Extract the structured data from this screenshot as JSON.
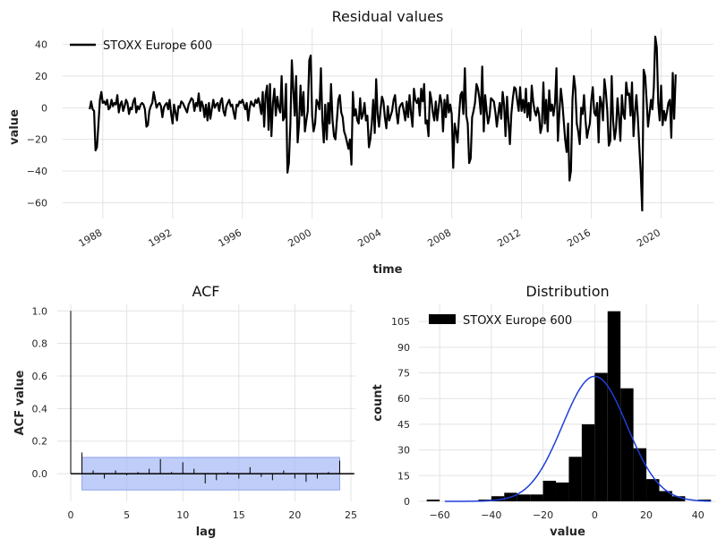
{
  "chart_data": [
    {
      "type": "line",
      "title": "Residual values",
      "xlabel": "time",
      "ylabel": "value",
      "xlim": [
        1985.7,
        2023.0
      ],
      "ylim": [
        -70,
        50
      ],
      "x_ticks": [
        1988,
        1992,
        1996,
        2000,
        2004,
        2008,
        2012,
        2016,
        2020
      ],
      "y_ticks": [
        -60,
        -40,
        -20,
        0,
        20,
        40
      ],
      "legend": "top-left",
      "series": [
        {
          "name": "STOXX Europe 600",
          "color": "#000000",
          "start": 1987.25,
          "step": 0.0833333,
          "values": [
            -1,
            4,
            -1,
            -2,
            -27,
            -25,
            -10,
            5,
            10,
            3,
            4,
            2,
            5,
            -1,
            0,
            5,
            1,
            3,
            2,
            8,
            -3,
            2,
            4,
            -2,
            1,
            5,
            3,
            -4,
            0,
            -1,
            4,
            6,
            -3,
            1,
            -1,
            2,
            3,
            2,
            -1,
            -12,
            -11,
            -2,
            1,
            3,
            10,
            5,
            0,
            2,
            3,
            1,
            -6,
            0,
            2,
            3,
            -1,
            5,
            -4,
            -10,
            2,
            -3,
            -8,
            1,
            0,
            4,
            3,
            1,
            -1,
            -3,
            2,
            4,
            6,
            5,
            -2,
            3,
            1,
            9,
            -2,
            4,
            1,
            -6,
            2,
            -8,
            3,
            -7,
            -1,
            5,
            0,
            2,
            3,
            -2,
            4,
            6,
            -2,
            -5,
            1,
            3,
            5,
            1,
            2,
            -3,
            -7,
            2,
            1,
            4,
            3,
            5,
            2,
            -1,
            3,
            -8,
            0,
            4,
            2,
            1,
            5,
            3,
            6,
            2,
            -4,
            10,
            -12,
            8,
            14,
            -14,
            15,
            -18,
            3,
            12,
            -5,
            7,
            0,
            -3,
            20,
            -8,
            -6,
            15,
            -41,
            -35,
            -10,
            30,
            12,
            -5,
            20,
            -22,
            -10,
            14,
            -5,
            10,
            -15,
            -8,
            -2,
            30,
            33,
            -5,
            -15,
            -10,
            5,
            3,
            -1,
            25,
            -8,
            -22,
            2,
            -20,
            3,
            -10,
            15,
            -8,
            -18,
            -20,
            -8,
            5,
            8,
            -3,
            -6,
            -15,
            -18,
            -22,
            -26,
            -20,
            -36,
            10,
            -5,
            -1,
            -8,
            -10,
            6,
            -7,
            -4,
            3,
            -8,
            -5,
            -25,
            -20,
            -10,
            5,
            -16,
            18,
            -4,
            -12,
            -1,
            7,
            4,
            -6,
            -13,
            1,
            -8,
            -5,
            -2,
            5,
            8,
            -3,
            -10,
            0,
            2,
            3,
            -2,
            -8,
            4,
            -6,
            8,
            -4,
            -12,
            12,
            5,
            3,
            6,
            -5,
            12,
            4,
            15,
            -10,
            -8,
            -18,
            10,
            5,
            -3,
            -8,
            4,
            -8,
            0,
            8,
            3,
            -15,
            5,
            -6,
            8,
            -3,
            2,
            -4,
            -38,
            -10,
            -15,
            -22,
            -5,
            8,
            10,
            -4,
            25,
            -5,
            -10,
            -35,
            -32,
            -6,
            -2,
            3,
            15,
            12,
            6,
            -4,
            26,
            -15,
            8,
            -2,
            -10,
            -5,
            6,
            5,
            4,
            -3,
            -12,
            -4,
            3,
            -7,
            10,
            2,
            -18,
            7,
            -9,
            -23,
            -4,
            6,
            13,
            12,
            5,
            -2,
            13,
            -2,
            5,
            -3,
            12,
            -6,
            3,
            -8,
            14,
            4,
            -2,
            -5,
            0,
            -4,
            -16,
            -12,
            16,
            -10,
            5,
            -15,
            11,
            -2,
            2,
            -5,
            3,
            25,
            -21,
            -4,
            12,
            4,
            -8,
            -20,
            -28,
            -10,
            -46,
            -40,
            5,
            20,
            12,
            -10,
            -15,
            -23,
            0,
            -4,
            8,
            -8,
            -19,
            -14,
            -10,
            5,
            13,
            -3,
            -5,
            3,
            -22,
            7,
            3,
            -8,
            18,
            10,
            -2,
            -24,
            -21,
            20,
            -8,
            -20,
            -13,
            6,
            -5,
            -21,
            8,
            -4,
            -7,
            16,
            8,
            9,
            -5,
            16,
            -18,
            -3,
            8,
            -6,
            -25,
            -42,
            -65,
            24,
            20,
            5,
            -12,
            -4,
            5,
            -1,
            13,
            45,
            38,
            3,
            -8,
            14,
            -11,
            -2,
            -8,
            -3,
            3,
            5,
            -19,
            22,
            -7,
            21
          ]
        }
      ]
    },
    {
      "type": "bar",
      "title": "ACF",
      "xlabel": "lag",
      "ylabel": "ACF value",
      "xlim": [
        -1.2,
        25.4
      ],
      "ylim": [
        -0.17,
        1.04
      ],
      "x_ticks": [
        0,
        5,
        10,
        15,
        20,
        25
      ],
      "y_ticks": [
        0.0,
        0.2,
        0.4,
        0.6,
        0.8,
        1.0
      ],
      "lags": [
        0,
        1,
        2,
        3,
        4,
        5,
        6,
        7,
        8,
        9,
        10,
        11,
        12,
        13,
        14,
        15,
        16,
        17,
        18,
        19,
        20,
        21,
        22,
        23,
        24
      ],
      "values": [
        1.0,
        0.13,
        0.02,
        -0.03,
        0.02,
        -0.01,
        0.01,
        0.03,
        0.09,
        0.01,
        0.07,
        0.03,
        -0.06,
        -0.04,
        0.01,
        -0.03,
        0.04,
        -0.02,
        -0.04,
        0.02,
        -0.03,
        -0.05,
        -0.03,
        0.01,
        0.08
      ],
      "confidence_band": 0.1,
      "band_color": "#aabcf5"
    },
    {
      "type": "bar",
      "title": "Distribution",
      "xlabel": "value",
      "ylabel": "count",
      "xlim": [
        -68,
        47
      ],
      "ylim": [
        0,
        115
      ],
      "x_ticks": [
        -60,
        -40,
        -20,
        0,
        20,
        40
      ],
      "y_ticks": [
        0,
        15,
        30,
        45,
        60,
        75,
        90,
        105
      ],
      "legend": "top-left",
      "series_name": "STOXX Europe 600",
      "bin_edges": [
        -65,
        -60,
        -55,
        -50,
        -45,
        -40,
        -35,
        -30,
        -25,
        -20,
        -15,
        -10,
        -5,
        0,
        5,
        10,
        15,
        20,
        25,
        30,
        35,
        40,
        45
      ],
      "counts": [
        1,
        0,
        0,
        0,
        1,
        3,
        5,
        4,
        4,
        12,
        11,
        26,
        45,
        75,
        111,
        66,
        31,
        13,
        6,
        3,
        0,
        1
      ],
      "kde_color": "#1e3fd8",
      "kde_mean": 0,
      "kde_sd": 12.5,
      "kde_peak": 73
    }
  ]
}
